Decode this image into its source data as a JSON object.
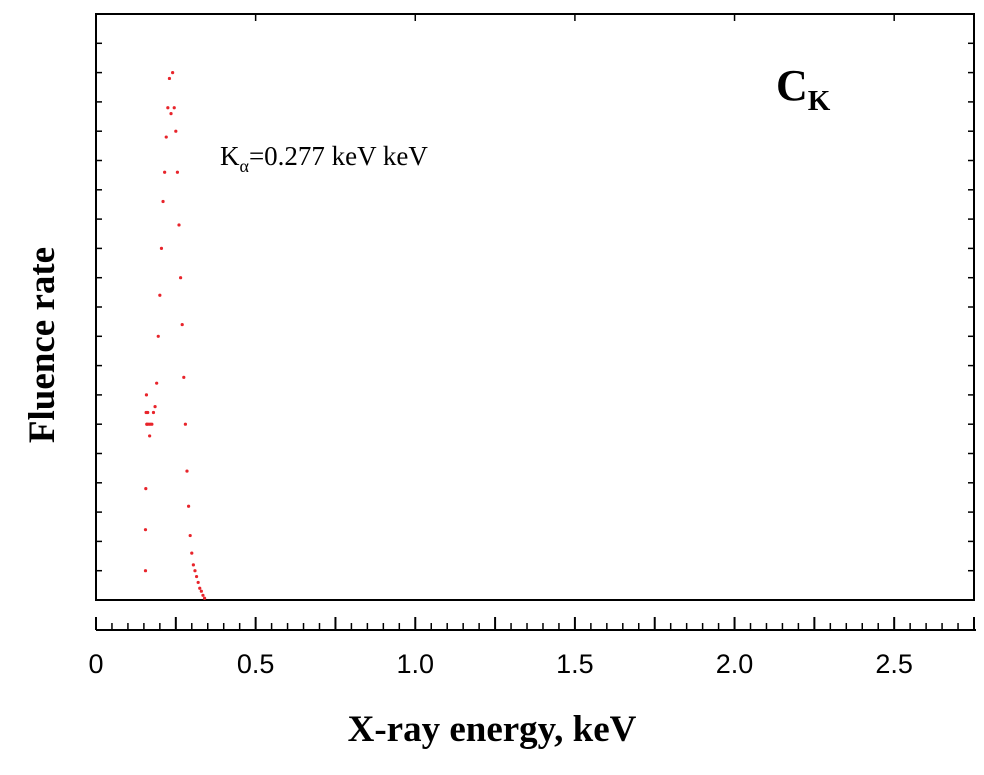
{
  "chart_data": {
    "type": "scatter",
    "title": "",
    "xlabel": "X-ray energy, keV",
    "ylabel": "Fluence rate",
    "xlim": [
      0,
      2.75
    ],
    "ylim": [
      0,
      1
    ],
    "x_ticks": [
      "0",
      "0.5",
      "1.0",
      "1.5",
      "2.0",
      "2.5"
    ],
    "x_tick_values": [
      0,
      0.5,
      1.0,
      1.5,
      2.0,
      2.5
    ],
    "y_tick_labels_shown": false,
    "grid": false,
    "legend": "none",
    "element_label": {
      "main": "C",
      "sub": "K"
    },
    "peak_annotation": {
      "symbol": "K",
      "sub": "α",
      "text": "=0.277 keV keV"
    },
    "series": [
      {
        "color": "#e8242b",
        "marker": "dot",
        "x": [
          0.155,
          0.155,
          0.156,
          0.157,
          0.158,
          0.159,
          0.16,
          0.162,
          0.165,
          0.168,
          0.17,
          0.175,
          0.18,
          0.185,
          0.19,
          0.195,
          0.2,
          0.205,
          0.21,
          0.215,
          0.22,
          0.225,
          0.23,
          0.235,
          0.24,
          0.245,
          0.25,
          0.255,
          0.26,
          0.265,
          0.27,
          0.275,
          0.28,
          0.285,
          0.29,
          0.295,
          0.3,
          0.305,
          0.31,
          0.315,
          0.32,
          0.325,
          0.33,
          0.335,
          0.34
        ],
        "y": [
          0.05,
          0.12,
          0.19,
          0.32,
          0.35,
          0.3,
          0.3,
          0.32,
          0.3,
          0.28,
          0.3,
          0.3,
          0.32,
          0.33,
          0.37,
          0.45,
          0.52,
          0.6,
          0.68,
          0.73,
          0.79,
          0.84,
          0.89,
          0.83,
          0.9,
          0.84,
          0.8,
          0.73,
          0.64,
          0.55,
          0.47,
          0.38,
          0.3,
          0.22,
          0.16,
          0.11,
          0.08,
          0.06,
          0.05,
          0.04,
          0.03,
          0.02,
          0.015,
          0.008,
          0.003
        ]
      }
    ]
  }
}
